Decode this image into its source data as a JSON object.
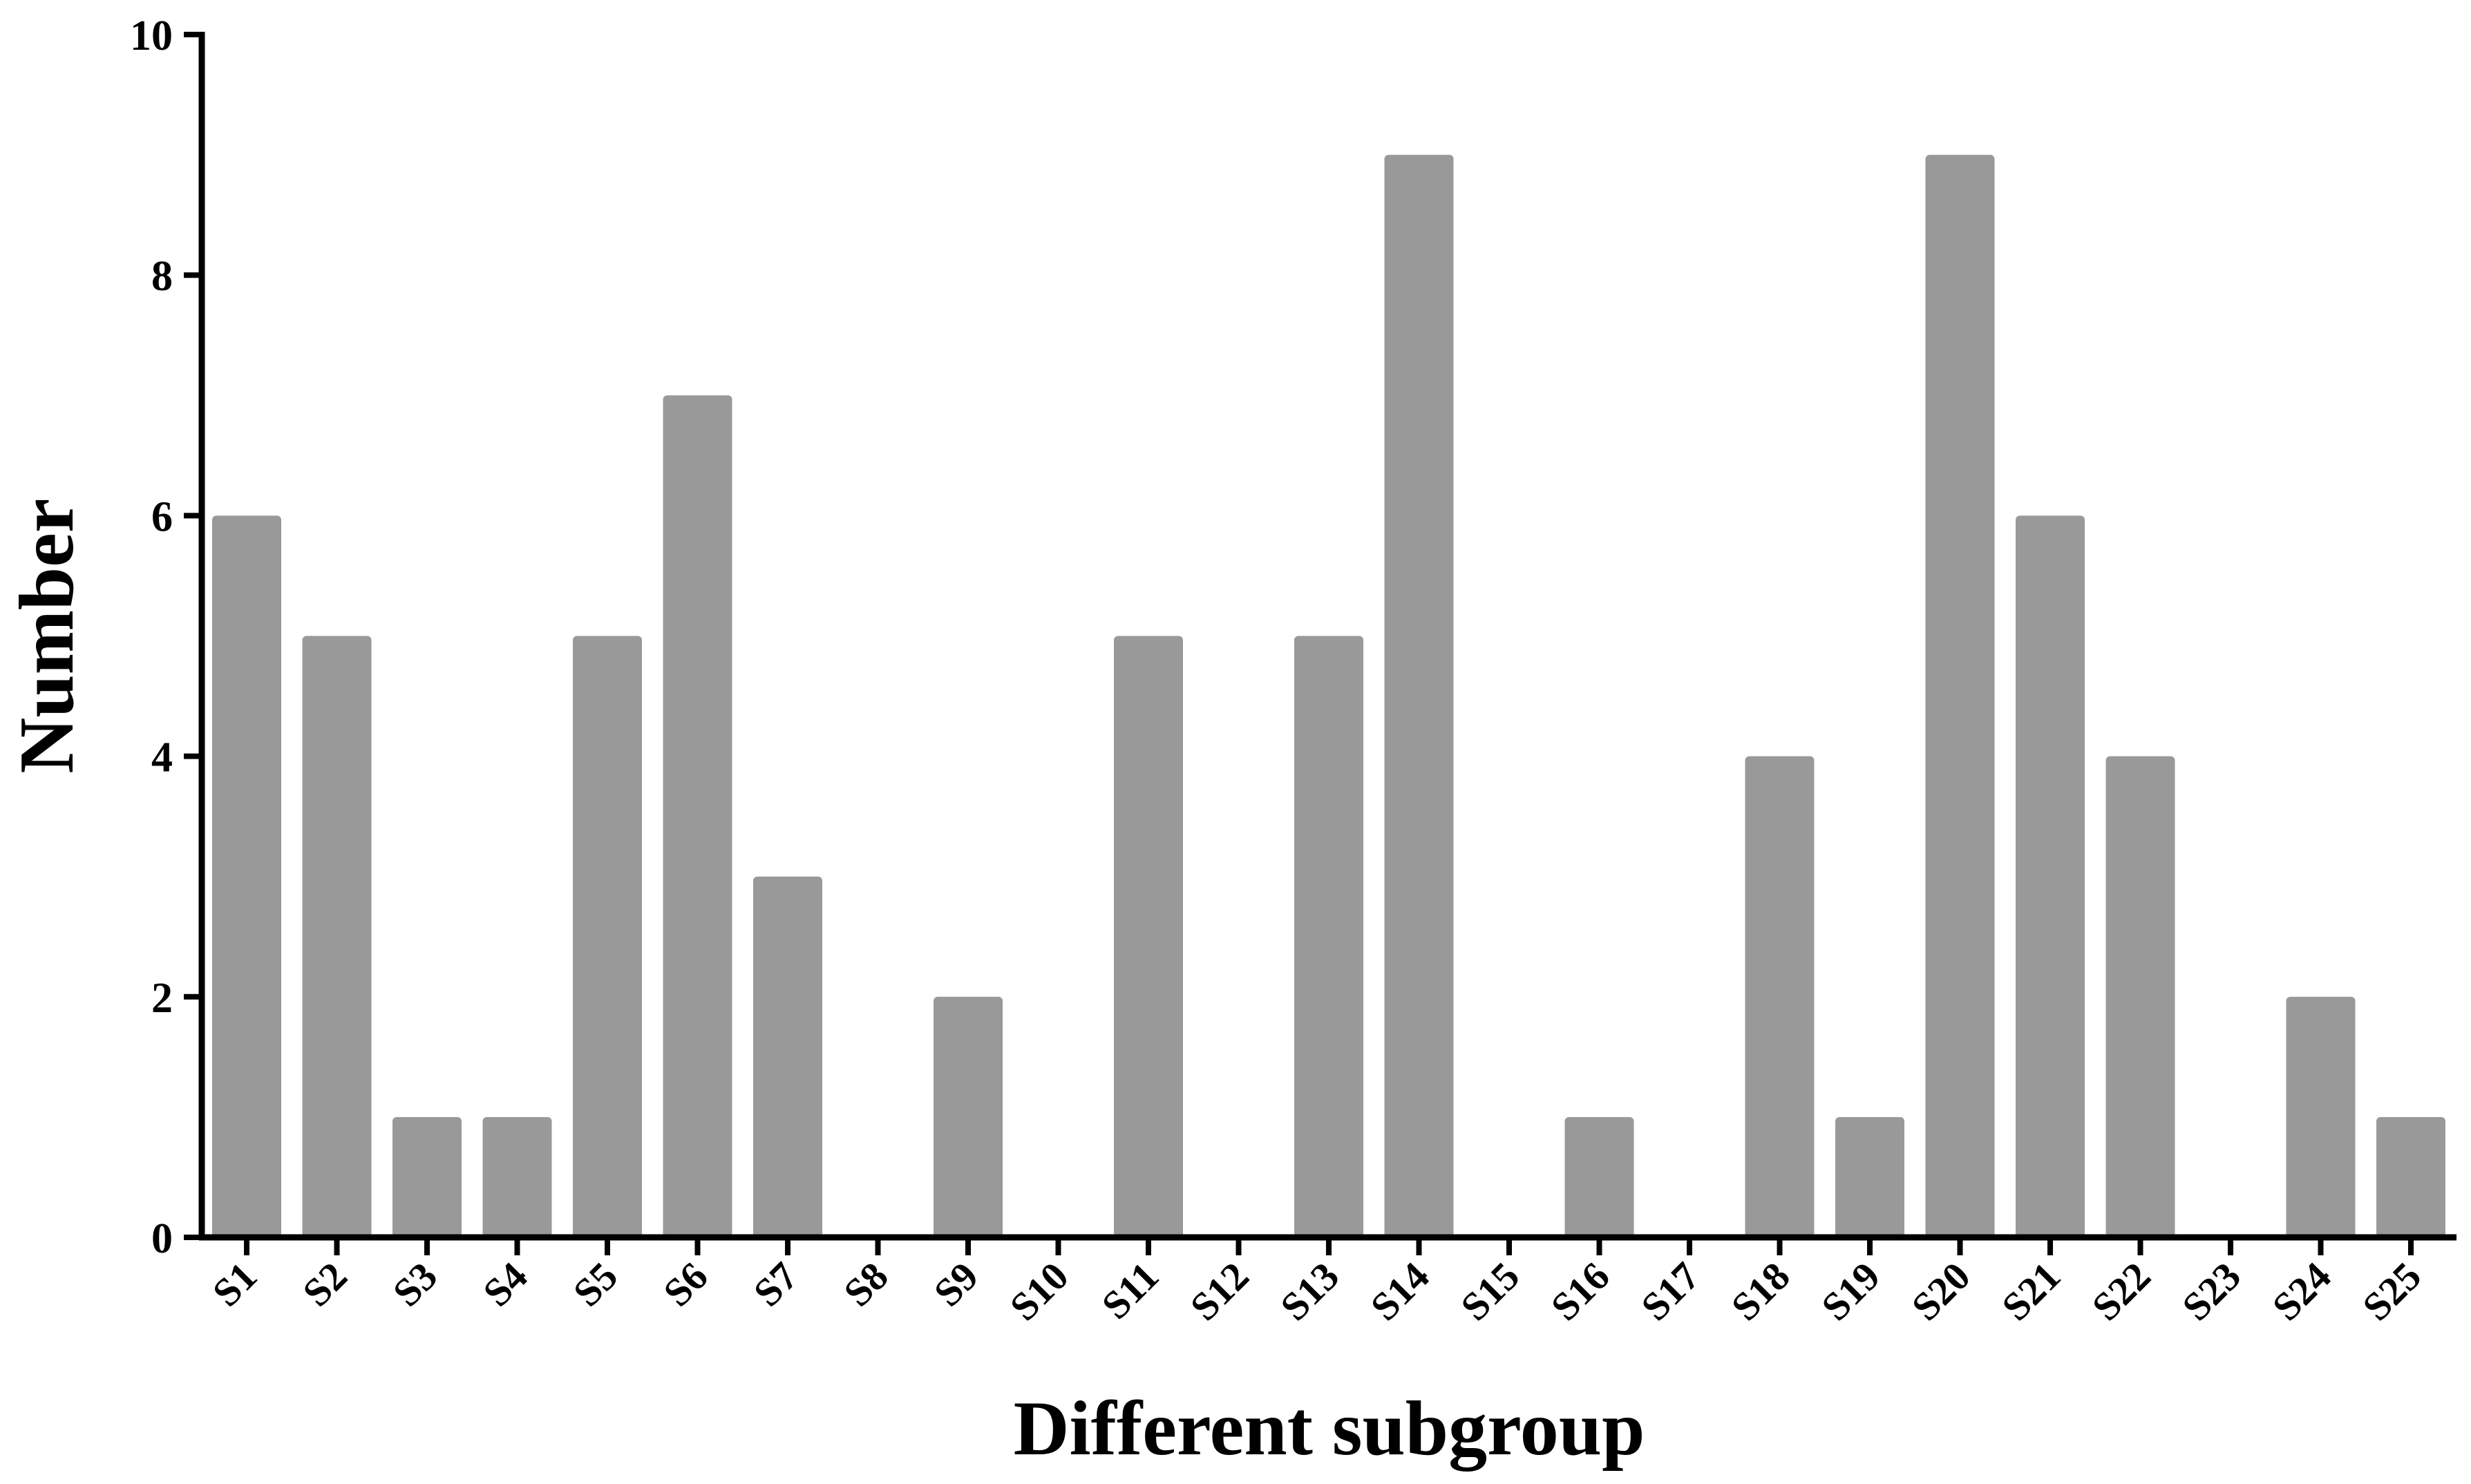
{
  "chart_data": {
    "type": "bar",
    "title": "",
    "xlabel": "Different subgroup",
    "ylabel": "Number",
    "ylim": [
      0,
      10
    ],
    "yticks": [
      0,
      2,
      4,
      6,
      8,
      10
    ],
    "categories": [
      "S1",
      "S2",
      "S3",
      "S4",
      "S5",
      "S6",
      "S7",
      "S8",
      "S9",
      "S10",
      "S11",
      "S12",
      "S13",
      "S14",
      "S15",
      "S16",
      "S17",
      "S18",
      "S19",
      "S20",
      "S21",
      "S22",
      "S23",
      "S24",
      "S25"
    ],
    "values": [
      6,
      5,
      1,
      1,
      5,
      7,
      3,
      0,
      2,
      0,
      5,
      0,
      5,
      9,
      0,
      1,
      0,
      4,
      1,
      9,
      6,
      4,
      0,
      2,
      1
    ],
    "bar_color": "#999999",
    "grid": false,
    "legend": "none"
  }
}
